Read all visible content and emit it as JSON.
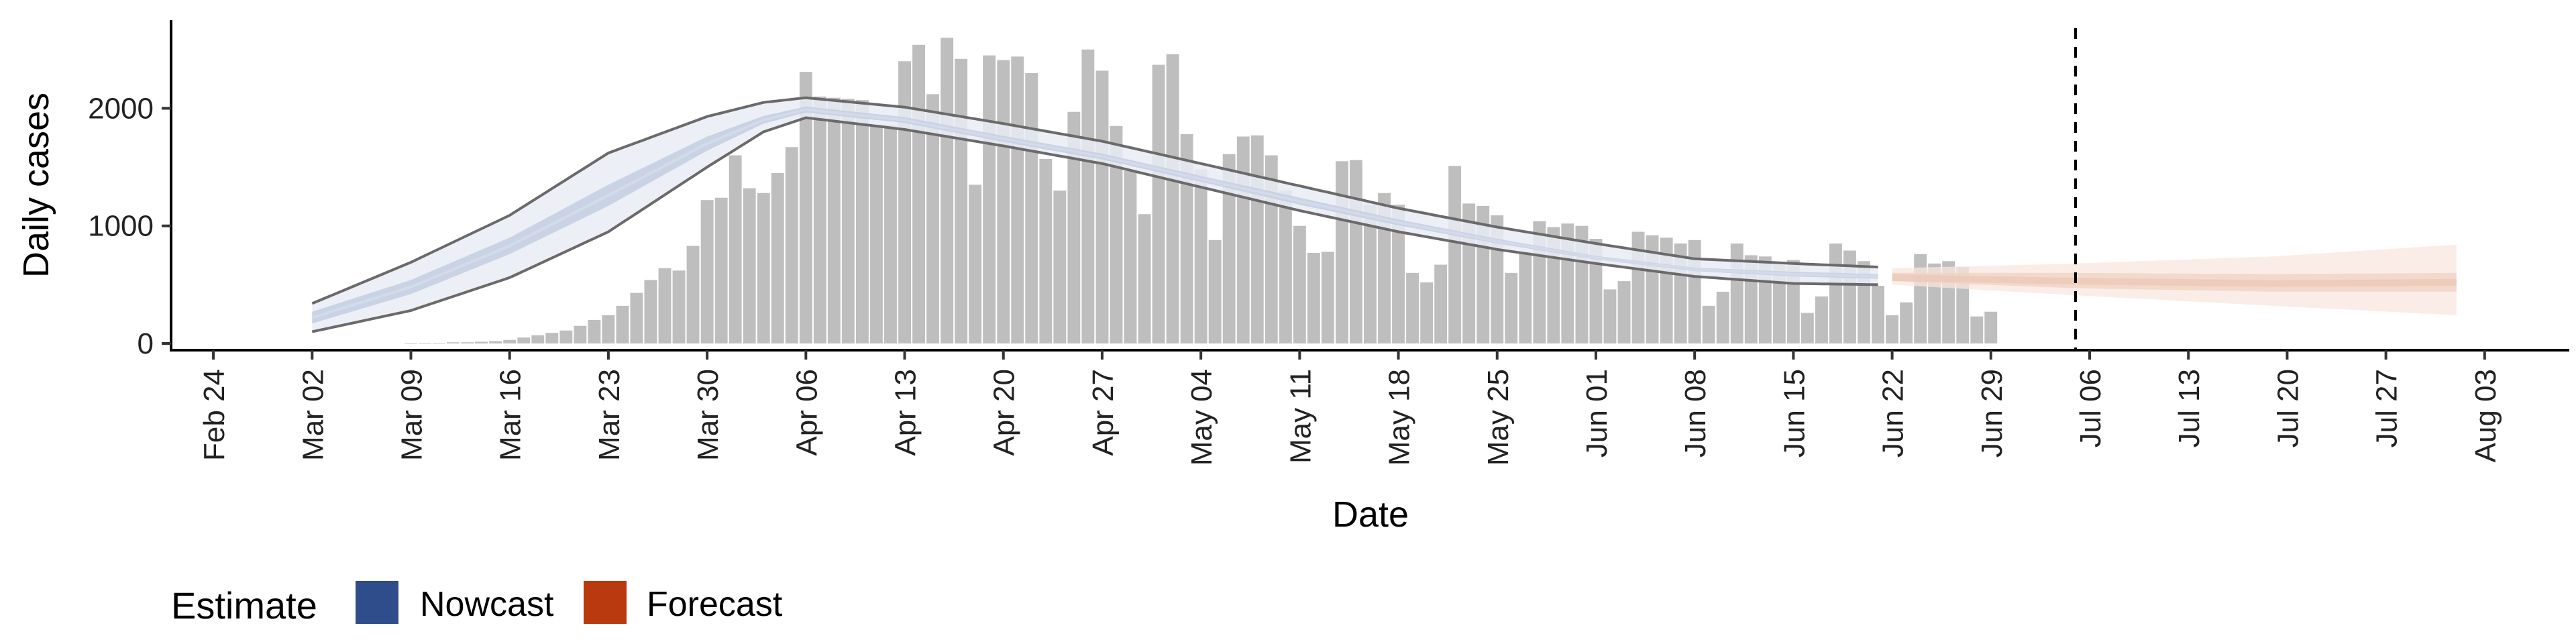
{
  "chart_data": {
    "type": "bar",
    "title": "",
    "xlabel": "Date",
    "ylabel": "Daily cases",
    "date_range": [
      "2020-02-21",
      "2020-08-09"
    ],
    "ylim": [
      0,
      2750
    ],
    "yticks": [
      0,
      1000,
      2000
    ],
    "x_tick_labels": [
      "Feb 24",
      "Mar 02",
      "Mar 09",
      "Mar 16",
      "Mar 23",
      "Mar 30",
      "Apr 06",
      "Apr 13",
      "Apr 20",
      "Apr 27",
      "May 04",
      "May 11",
      "May 18",
      "May 25",
      "Jun 01",
      "Jun 08",
      "Jun 15",
      "Jun 22",
      "Jun 29",
      "Jul 06",
      "Jul 13",
      "Jul 20",
      "Jul 27",
      "Aug 03"
    ],
    "x_tick_dates": [
      "2020-02-24",
      "2020-03-02",
      "2020-03-09",
      "2020-03-16",
      "2020-03-23",
      "2020-03-30",
      "2020-04-06",
      "2020-04-13",
      "2020-04-20",
      "2020-04-27",
      "2020-05-04",
      "2020-05-11",
      "2020-05-18",
      "2020-05-25",
      "2020-06-01",
      "2020-06-08",
      "2020-06-15",
      "2020-06-22",
      "2020-06-29",
      "2020-07-06",
      "2020-07-13",
      "2020-07-20",
      "2020-07-27",
      "2020-08-03"
    ],
    "vline_date": "2020-07-05",
    "grid": false,
    "legend_position": "bottom-left",
    "bars": {
      "name": "Daily cases",
      "start_date": "2020-03-09",
      "values": [
        5,
        5,
        5,
        10,
        10,
        15,
        20,
        30,
        50,
        70,
        90,
        110,
        150,
        200,
        240,
        320,
        430,
        540,
        640,
        620,
        830,
        1220,
        1240,
        1600,
        1320,
        1280,
        1450,
        1670,
        2310,
        2100,
        2090,
        2080,
        2070,
        1860,
        1860,
        2400,
        2540,
        2120,
        2600,
        2420,
        1350,
        2450,
        2410,
        2440,
        2300,
        1570,
        1300,
        1970,
        2500,
        2320,
        1850,
        1470,
        1100,
        2370,
        2460,
        1780,
        1480,
        880,
        1610,
        1760,
        1770,
        1600,
        1300,
        1000,
        770,
        780,
        1550,
        1560,
        1180,
        1280,
        1180,
        600,
        520,
        670,
        1510,
        1190,
        1170,
        1090,
        600,
        780,
        1040,
        990,
        1020,
        1000,
        890,
        460,
        530,
        950,
        920,
        900,
        850,
        880,
        320,
        440,
        850,
        750,
        740,
        670,
        710,
        260,
        400,
        850,
        790,
        700,
        490,
        240,
        350,
        760,
        680,
        700,
        650,
        230,
        270
      ]
    },
    "series": [
      {
        "name": "Nowcast",
        "color": "#2f4d8a",
        "start_date": "2020-03-02",
        "end_date": "2020-06-21",
        "anchor_days": [
          0,
          7,
          14,
          21,
          28,
          32,
          35,
          42,
          49,
          56,
          63,
          70,
          77,
          84,
          91,
          98,
          105,
          111
        ],
        "median": [
          220,
          480,
          830,
          1260,
          1700,
          1900,
          1990,
          1900,
          1740,
          1590,
          1400,
          1210,
          1030,
          870,
          730,
          630,
          590,
          570
        ],
        "outer_lower": [
          100,
          280,
          560,
          950,
          1500,
          1800,
          1920,
          1820,
          1680,
          1530,
          1330,
          1130,
          950,
          800,
          680,
          570,
          510,
          500
        ],
        "outer_upper": [
          340,
          690,
          1090,
          1620,
          1930,
          2050,
          2090,
          2010,
          1870,
          1720,
          1530,
          1340,
          1150,
          990,
          850,
          720,
          680,
          650
        ],
        "inner_lower": [
          170,
          420,
          760,
          1170,
          1640,
          1870,
          1965,
          1875,
          1715,
          1565,
          1375,
          1180,
          1005,
          850,
          715,
          615,
          570,
          550
        ],
        "inner_upper": [
          270,
          540,
          900,
          1350,
          1760,
          1935,
          2015,
          1925,
          1765,
          1615,
          1425,
          1240,
          1055,
          890,
          745,
          645,
          610,
          590
        ]
      },
      {
        "name": "Forecast",
        "color": "#b83a0e",
        "start_date": "2020-06-22",
        "end_date": "2020-08-01",
        "anchor_days": [
          0,
          13,
          27,
          40
        ],
        "median": [
          560,
          530,
          510,
          520
        ],
        "outer_lower": [
          500,
          410,
          320,
          240
        ],
        "outer_upper": [
          640,
          680,
          740,
          840
        ],
        "inner_lower": [
          530,
          470,
          440,
          440
        ],
        "inner_upper": [
          600,
          600,
          590,
          600
        ]
      }
    ],
    "colors": {
      "bar": "#bebebe",
      "nowcast_outer": "#e9ecf3",
      "nowcast_inner": "#c6cfe2",
      "nowcast_median": "#d3daea",
      "forecast_outer": "#f8e7df",
      "forecast_inner": "#f0d3c5",
      "forecast_median": "#ecc8b8",
      "outline": "#6a6a6a"
    }
  },
  "legend": {
    "title": "Estimate",
    "items": [
      {
        "label": "Nowcast",
        "color": "#2f4d8a"
      },
      {
        "label": "Forecast",
        "color": "#b83a0e"
      }
    ]
  }
}
